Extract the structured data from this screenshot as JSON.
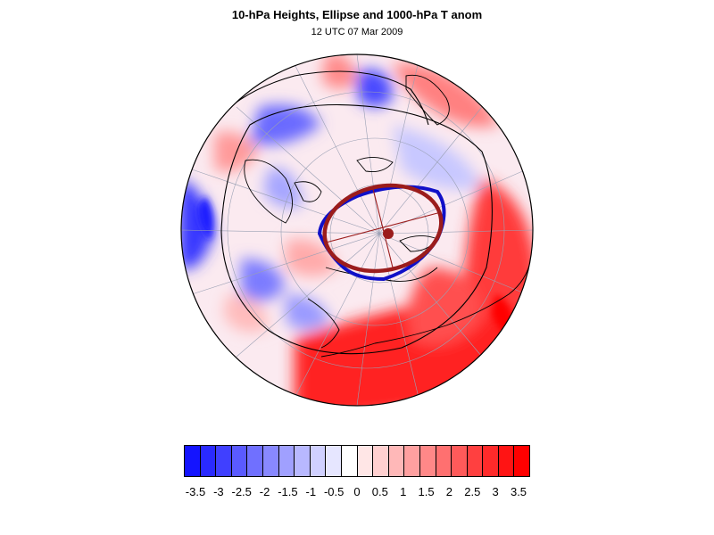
{
  "title": "10-hPa Heights, Ellipse and 1000-hPa T anom",
  "subtitle": "12 UTC 07 Mar 2009",
  "map": {
    "projection": "north-polar-stereographic",
    "vortex_outline_color": "#1010c8",
    "ellipse_color": "#9b1c1c",
    "contour_color": "#000000",
    "graticule_color": "#9aa0b4"
  },
  "colorbar": {
    "colors": [
      "#1414ff",
      "#2a2aff",
      "#4040ff",
      "#5a5aff",
      "#7070ff",
      "#8888ff",
      "#a0a0ff",
      "#b8b8ff",
      "#d0d0ff",
      "#e6e6ff",
      "#ffffff",
      "#ffe6e6",
      "#ffd0d0",
      "#ffb8b8",
      "#ffa0a0",
      "#ff8888",
      "#ff7070",
      "#ff5a5a",
      "#ff4040",
      "#ff2a2a",
      "#ff1414",
      "#ff0000"
    ],
    "tick_labels": [
      "-3.5",
      "-3",
      "-2.5",
      "-2",
      "-1.5",
      "-1",
      "-0.5",
      "0",
      "0.5",
      "1",
      "1.5",
      "2",
      "2.5",
      "3",
      "3.5"
    ]
  }
}
